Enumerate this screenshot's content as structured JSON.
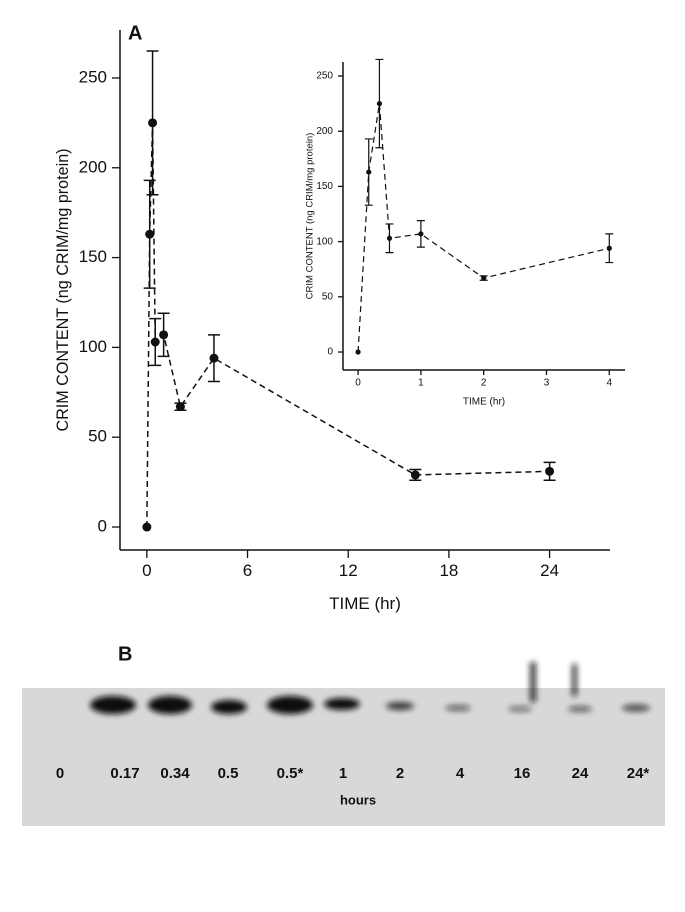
{
  "chart_data": [
    {
      "type": "line",
      "panel_label": "A",
      "x_label": "TIME (hr)",
      "y_label": "CRIM CONTENT (ng CRIM/mg protein)",
      "x": [
        0,
        0.17,
        0.34,
        0.5,
        1,
        2,
        4,
        16,
        24
      ],
      "series": [
        {
          "color": "#111111",
          "values": [
            0,
            163,
            225,
            103,
            107,
            67,
            94,
            29,
            31
          ],
          "errors": [
            null,
            30,
            40,
            13,
            12,
            2,
            13,
            3,
            5
          ]
        }
      ],
      "xlim": [
        -1.6,
        27.6
      ],
      "xticks": [
        0,
        6,
        12,
        18,
        24
      ],
      "ylim": [
        -12.8,
        276.7
      ],
      "yticks": [
        0,
        50,
        100,
        150,
        200,
        250
      ]
    },
    {
      "type": "line",
      "x_label": "TIME (hr)",
      "y_label": "CRIM CONTENT (ng CRIM/mg protein)",
      "x": [
        0,
        0.17,
        0.34,
        0.5,
        1,
        2,
        4
      ],
      "series": [
        {
          "color": "#111111",
          "values": [
            0,
            163,
            225,
            103,
            107,
            67,
            94
          ],
          "errors": [
            null,
            30,
            40,
            13,
            12,
            2,
            13
          ]
        }
      ],
      "xlim": [
        -0.24,
        4.25
      ],
      "xticks": [
        0,
        1,
        2,
        3,
        4
      ],
      "ylim": [
        -16.3,
        262.7
      ],
      "yticks": [
        0,
        50,
        100,
        150,
        200,
        250
      ]
    }
  ],
  "gel": {
    "panel_label": "B",
    "lanes": [
      "0",
      "0.17",
      "0.34",
      "0.5",
      "0.5*",
      "1",
      "2",
      "4",
      "16",
      "24",
      "24*"
    ],
    "x_label": "hours"
  }
}
